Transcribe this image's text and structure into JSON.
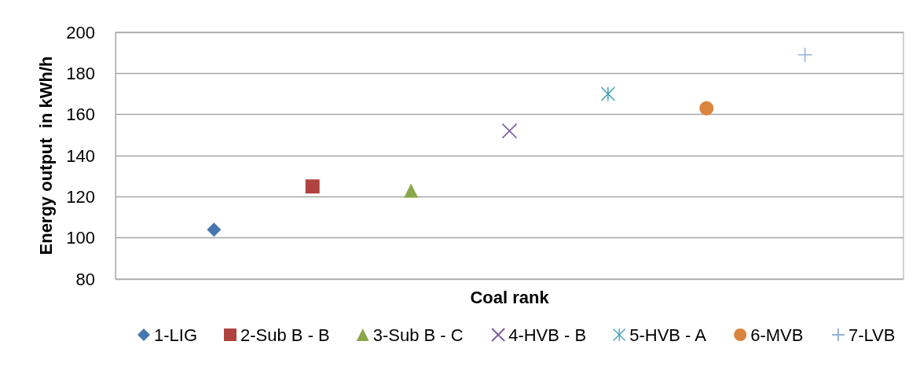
{
  "chart_data": {
    "type": "scatter",
    "xlabel": "Coal rank",
    "ylabel": "Energy output  in kWh/h",
    "categories": [
      null,
      null,
      null,
      null,
      null,
      null,
      null
    ],
    "ylim": [
      80,
      200
    ],
    "yticks": [
      80,
      100,
      120,
      140,
      160,
      180,
      200
    ],
    "grid": "y",
    "legend": "bottom",
    "series": [
      {
        "name": "1-LIG",
        "color": "#4677b0",
        "marker": "diamond",
        "values": [
          104,
          null,
          null,
          null,
          null,
          null,
          null
        ]
      },
      {
        "name": "2-Sub B - B",
        "color": "#b0433f",
        "marker": "square",
        "values": [
          null,
          125,
          null,
          null,
          null,
          null,
          null
        ]
      },
      {
        "name": "3-Sub B - C",
        "color": "#8aa84b",
        "marker": "triangle",
        "values": [
          null,
          null,
          123,
          null,
          null,
          null,
          null
        ]
      },
      {
        "name": "4-HVB - B",
        "color": "#7c5fa0",
        "marker": "cross",
        "values": [
          null,
          null,
          null,
          152,
          null,
          null,
          null
        ]
      },
      {
        "name": "5-HVB - A",
        "color": "#3f9fb8",
        "marker": "star",
        "values": [
          null,
          null,
          null,
          null,
          170,
          null,
          null
        ]
      },
      {
        "name": "6-MVB",
        "color": "#db843d",
        "marker": "circle",
        "values": [
          null,
          null,
          null,
          null,
          null,
          163,
          null
        ]
      },
      {
        "name": "7-LVB",
        "color": "#95b3d7",
        "marker": "plus",
        "values": [
          null,
          null,
          null,
          null,
          null,
          null,
          189
        ]
      }
    ]
  }
}
